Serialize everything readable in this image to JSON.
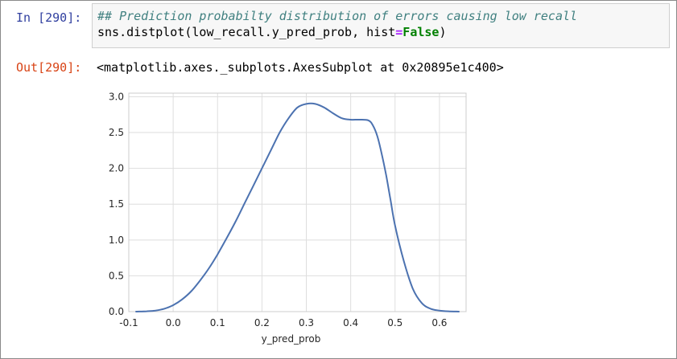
{
  "cell": {
    "in_prompt": "In [290]:",
    "comment_line": "## Prediction probabilty distribution of errors causing low recall",
    "code_prefix": "sns.distplot(low_recall.y_pred_prob, hist",
    "code_op": "=",
    "code_kw": "False",
    "code_suffix": ")",
    "out_prompt": "Out[290]:",
    "out_text": "<matplotlib.axes._subplots.AxesSubplot at 0x20895e1c400>"
  },
  "chart_data": {
    "type": "line",
    "xlabel": "y_pred_prob",
    "ylabel": "",
    "xlim": [
      -0.1,
      0.66
    ],
    "ylim": [
      0,
      3.05
    ],
    "x_ticks": [
      -0.1,
      0.0,
      0.1,
      0.2,
      0.3,
      0.4,
      0.5,
      0.6
    ],
    "x_tick_labels": [
      "-0.1",
      "0.0",
      "0.1",
      "0.2",
      "0.3",
      "0.4",
      "0.5",
      "0.6"
    ],
    "y_ticks": [
      0.0,
      0.5,
      1.0,
      1.5,
      2.0,
      2.5,
      3.0
    ],
    "y_tick_labels": [
      "0.0",
      "0.5",
      "1.0",
      "1.5",
      "2.0",
      "2.5",
      "3.0"
    ],
    "grid": true,
    "line_color": "#4c72b0",
    "series": [
      {
        "x": [
          -0.085,
          -0.06,
          -0.04,
          -0.02,
          0.0,
          0.02,
          0.04,
          0.06,
          0.08,
          0.1,
          0.12,
          0.14,
          0.16,
          0.18,
          0.2,
          0.22,
          0.24,
          0.26,
          0.28,
          0.3,
          0.32,
          0.34,
          0.36,
          0.38,
          0.4,
          0.42,
          0.44,
          0.45,
          0.46,
          0.47,
          0.48,
          0.49,
          0.5,
          0.52,
          0.54,
          0.56,
          0.58,
          0.6,
          0.62,
          0.645
        ],
        "y": [
          0.0,
          0.005,
          0.015,
          0.04,
          0.09,
          0.17,
          0.28,
          0.43,
          0.6,
          0.8,
          1.02,
          1.25,
          1.5,
          1.75,
          2.0,
          2.25,
          2.5,
          2.7,
          2.85,
          2.9,
          2.9,
          2.85,
          2.77,
          2.7,
          2.68,
          2.68,
          2.67,
          2.6,
          2.45,
          2.2,
          1.9,
          1.55,
          1.2,
          0.7,
          0.32,
          0.12,
          0.04,
          0.015,
          0.004,
          0.0
        ]
      }
    ]
  }
}
